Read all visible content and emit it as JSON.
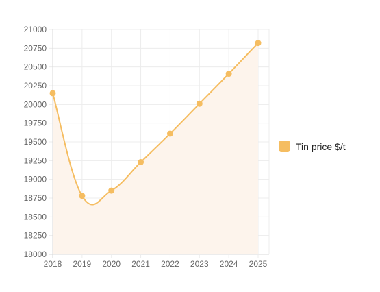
{
  "chart_data": {
    "type": "area",
    "categories": [
      "2018",
      "2019",
      "2020",
      "2021",
      "2022",
      "2023",
      "2024",
      "2025"
    ],
    "series": [
      {
        "name": "Tin price $/t",
        "values": [
          20150,
          18780,
          18850,
          19230,
          19610,
          20010,
          20410,
          20820
        ]
      }
    ],
    "yticks": [
      "18000",
      "18250",
      "18500",
      "18750",
      "19000",
      "19250",
      "19500",
      "19750",
      "20000",
      "20250",
      "20500",
      "20750",
      "21000"
    ],
    "ylim": [
      18000,
      21000
    ],
    "grid": true,
    "legend_position": "right",
    "colors": {
      "line": "#f5bd61",
      "fill": "#fdf4ec",
      "marker": "#f5bd61",
      "grid": "#ececec",
      "axis": "#d9d9d9"
    }
  }
}
